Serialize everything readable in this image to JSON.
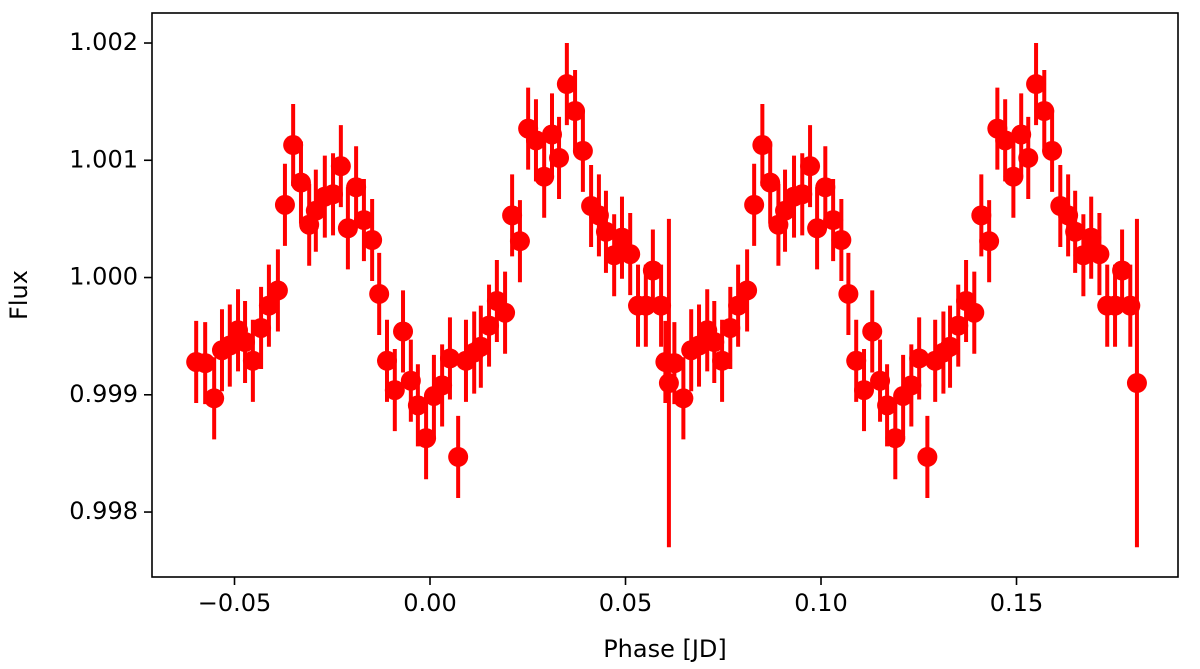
{
  "chart_data": {
    "type": "scatter",
    "xlabel": "Phase [JD]",
    "ylabel": "Flux",
    "color": "#ff0000",
    "xlim": [
      -0.0711,
      0.1913
    ],
    "ylim": [
      0.997446,
      1.002256
    ],
    "xticks": [
      {
        "value": -0.05,
        "label": "−0.05"
      },
      {
        "value": 0,
        "label": "0.00"
      },
      {
        "value": 0.05,
        "label": "0.05"
      },
      {
        "value": 0.1,
        "label": "0.10"
      },
      {
        "value": 0.15,
        "label": "0.15"
      }
    ],
    "yticks": [
      0.998,
      0.999,
      {
        "value": 1,
        "label": "1.000"
      },
      1.001,
      1.002
    ],
    "x": [
      -0.0598,
      -0.0575,
      -0.0552,
      -0.0532,
      -0.0512,
      -0.0491,
      -0.0473,
      -0.0453,
      -0.0432,
      -0.0412,
      -0.0389,
      -0.0371,
      -0.035,
      -0.033,
      -0.0309,
      -0.0292,
      -0.0269,
      -0.0248,
      -0.0228,
      -0.021,
      -0.0189,
      -0.0169,
      -0.0148,
      -0.013,
      -0.011,
      -0.009,
      -0.0069,
      -0.0049,
      -0.0031,
      -0.001,
      0.001,
      0.0031,
      0.0051,
      0.0072,
      0.0092,
      0.0113,
      0.013,
      0.0151,
      0.0171,
      0.0192,
      0.021,
      0.023,
      0.0251,
      0.0271,
      0.0292,
      0.0312,
      0.033,
      0.035,
      0.0371,
      0.0391,
      0.0412,
      0.0432,
      0.045,
      0.0471,
      0.0491,
      0.0512,
      0.0532,
      0.0552,
      0.057,
      0.0591,
      0.0611,
      0.0602,
      0.0625,
      0.0648,
      0.0668,
      0.0688,
      0.0709,
      0.0727,
      0.0747,
      0.0768,
      0.0788,
      0.0811,
      0.0829,
      0.085,
      0.087,
      0.0891,
      0.0908,
      0.0931,
      0.0952,
      0.0972,
      0.099,
      0.1011,
      0.1031,
      0.1052,
      0.107,
      0.109,
      0.111,
      0.1131,
      0.1151,
      0.1169,
      0.119,
      0.121,
      0.1231,
      0.1251,
      0.1272,
      0.1292,
      0.1313,
      0.133,
      0.1351,
      0.1371,
      0.1392,
      0.141,
      0.143,
      0.1451,
      0.1471,
      0.1492,
      0.1512,
      0.153,
      0.155,
      0.1571,
      0.1591,
      0.1612,
      0.1632,
      0.165,
      0.1671,
      0.1691,
      0.1712,
      0.1732,
      0.1752,
      0.177,
      0.1791,
      0.1808
    ],
    "values": [
      0.99928,
      0.99927,
      0.99897,
      0.99938,
      0.99942,
      0.99955,
      0.99945,
      0.99929,
      0.99957,
      0.99976,
      0.99989,
      1.00062,
      1.00113,
      1.00081,
      1.00045,
      1.00057,
      1.00069,
      1.00071,
      1.00095,
      1.00042,
      1.00077,
      1.00049,
      1.00032,
      0.99986,
      0.99929,
      0.99904,
      0.99954,
      0.99912,
      0.99891,
      0.99863,
      0.99899,
      0.99908,
      0.99931,
      0.99847,
      0.99929,
      0.99936,
      0.99941,
      0.99959,
      0.9998,
      0.9997,
      1.00053,
      1.00031,
      1.00127,
      1.00117,
      1.00086,
      1.00122,
      1.00102,
      1.00165,
      1.00142,
      1.00108,
      1.00061,
      1.00053,
      1.00039,
      1.00019,
      1.00034,
      1.0002,
      0.99976,
      0.99976,
      1.00006,
      0.99976,
      0.9991,
      0.99928,
      0.99927,
      0.99897,
      0.99938,
      0.99942,
      0.99955,
      0.99945,
      0.99929,
      0.99957,
      0.99976,
      0.99989,
      1.00062,
      1.00113,
      1.00081,
      1.00045,
      1.00057,
      1.00069,
      1.00071,
      1.00095,
      1.00042,
      1.00077,
      1.00049,
      1.00032,
      0.99986,
      0.99929,
      0.99904,
      0.99954,
      0.99912,
      0.99891,
      0.99863,
      0.99899,
      0.99908,
      0.99931,
      0.99847,
      0.99929,
      0.99936,
      0.99941,
      0.99959,
      0.9998,
      0.9997,
      1.00053,
      1.00031,
      1.00127,
      1.00117,
      1.00086,
      1.00122,
      1.00102,
      1.00165,
      1.00142,
      1.00108,
      1.00061,
      1.00053,
      1.00039,
      1.00019,
      1.00034,
      1.0002,
      0.99976,
      0.99976,
      1.00006,
      0.99976,
      0.9991
    ],
    "errors": [
      0.00035,
      0.00035,
      0.00035,
      0.00035,
      0.00035,
      0.00035,
      0.00035,
      0.00035,
      0.00035,
      0.00035,
      0.00035,
      0.00035,
      0.00035,
      0.00035,
      0.00035,
      0.00035,
      0.00035,
      0.00035,
      0.00035,
      0.00035,
      0.00035,
      0.00035,
      0.00035,
      0.00035,
      0.00035,
      0.00035,
      0.00035,
      0.00035,
      0.00035,
      0.00035,
      0.00035,
      0.00035,
      0.00035,
      0.00035,
      0.00035,
      0.00035,
      0.00035,
      0.00035,
      0.00035,
      0.00035,
      0.00035,
      0.00035,
      0.00035,
      0.00035,
      0.00035,
      0.00035,
      0.00035,
      0.00035,
      0.00035,
      0.00035,
      0.00035,
      0.00035,
      0.00035,
      0.00035,
      0.00035,
      0.00035,
      0.00035,
      0.00035,
      0.00035,
      0.00035,
      0.0014,
      0.00035,
      0.00035,
      0.00035,
      0.00035,
      0.00035,
      0.00035,
      0.00035,
      0.00035,
      0.00035,
      0.00035,
      0.00035,
      0.00035,
      0.00035,
      0.00035,
      0.00035,
      0.00035,
      0.00035,
      0.00035,
      0.00035,
      0.00035,
      0.00035,
      0.00035,
      0.00035,
      0.00035,
      0.00035,
      0.00035,
      0.00035,
      0.00035,
      0.00035,
      0.00035,
      0.00035,
      0.00035,
      0.00035,
      0.00035,
      0.00035,
      0.00035,
      0.00035,
      0.00035,
      0.00035,
      0.00035,
      0.00035,
      0.00035,
      0.00035,
      0.00035,
      0.00035,
      0.00035,
      0.00035,
      0.00035,
      0.00035,
      0.00035,
      0.00035,
      0.00035,
      0.00035,
      0.00035,
      0.00035,
      0.00035,
      0.00035,
      0.00035,
      0.00035,
      0.00035,
      0.0014
    ]
  }
}
